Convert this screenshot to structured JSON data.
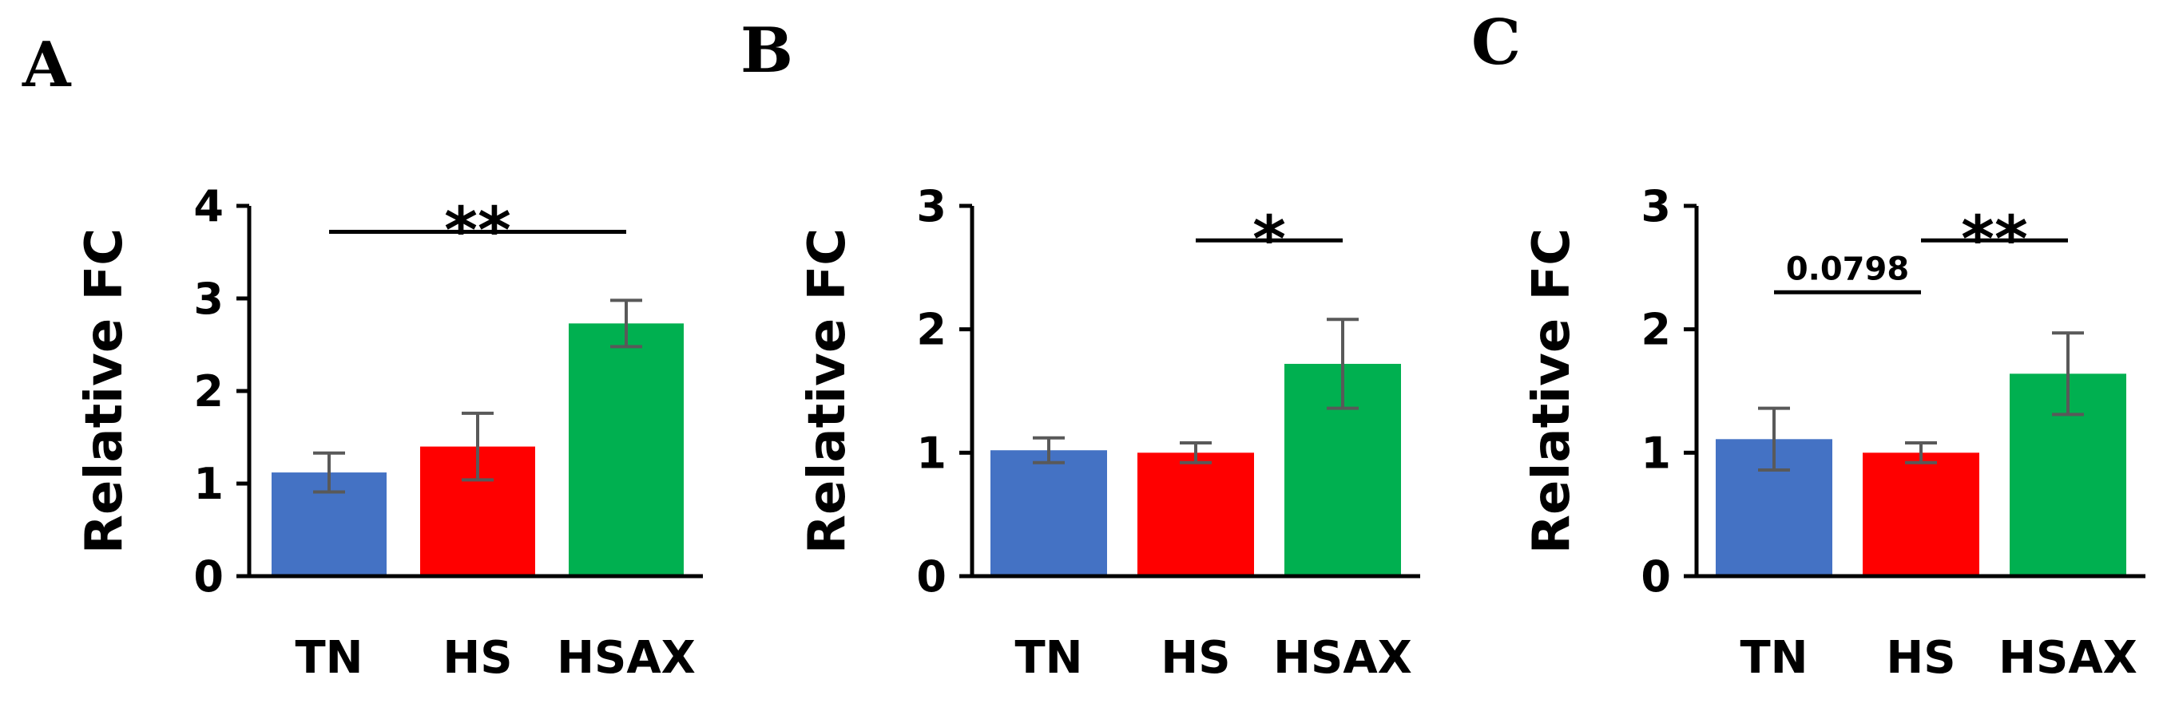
{
  "colors": {
    "TN": "#4472C4",
    "HS": "#FF0000",
    "HSAX": "#00B050",
    "error_bar": "#595959",
    "axis": "#000000"
  },
  "chart_data": [
    {
      "panel": "A",
      "type": "bar",
      "categories": [
        "TN",
        "HS",
        "HSAX"
      ],
      "values": [
        1.12,
        1.4,
        2.73
      ],
      "errors": [
        0.21,
        0.36,
        0.25
      ],
      "ylabel": "Relative FC",
      "ylim": [
        0,
        4
      ],
      "yticks": [
        "0",
        "1",
        "2",
        "3",
        "4"
      ],
      "significance": [
        {
          "from": 0,
          "to": 2,
          "y": 3.72,
          "label": "**"
        }
      ]
    },
    {
      "panel": "B",
      "type": "bar",
      "categories": [
        "TN",
        "HS",
        "HSAX"
      ],
      "values": [
        1.02,
        1.0,
        1.72
      ],
      "errors": [
        0.1,
        0.08,
        0.36
      ],
      "ylabel": "Relative FC",
      "ylim": [
        0,
        3
      ],
      "yticks": [
        "0",
        "1",
        "2",
        "3"
      ],
      "significance": [
        {
          "from": 1,
          "to": 2,
          "y": 2.72,
          "label": "*"
        }
      ]
    },
    {
      "panel": "C",
      "type": "bar",
      "categories": [
        "TN",
        "HS",
        "HSAX"
      ],
      "values": [
        1.11,
        1.0,
        1.64
      ],
      "errors": [
        0.25,
        0.08,
        0.33
      ],
      "ylabel": "Relative FC",
      "ylim": [
        0,
        3
      ],
      "yticks": [
        "0",
        "1",
        "2",
        "3"
      ],
      "significance": [
        {
          "from": 0,
          "to": 1,
          "y": 2.3,
          "label": "0.0798"
        },
        {
          "from": 1,
          "to": 2,
          "y": 2.72,
          "label": "**"
        }
      ]
    }
  ]
}
